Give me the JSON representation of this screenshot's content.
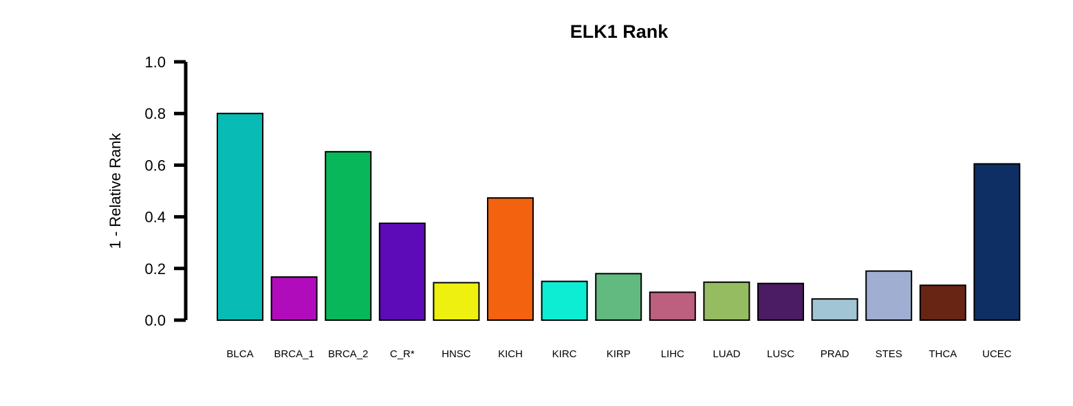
{
  "chart_data": {
    "type": "bar",
    "title": "ELK1 Rank",
    "xlabel": "",
    "ylabel": "1 - Relative Rank",
    "ylim": [
      0,
      1
    ],
    "yticks": [
      "0.0",
      "0.2",
      "0.4",
      "0.6",
      "0.8",
      "1.0"
    ],
    "ytick_values": [
      0,
      0.2,
      0.4,
      0.6,
      0.8,
      1.0
    ],
    "grid": false,
    "legend": "none",
    "categories": [
      "BLCA",
      "BRCA_1",
      "BRCA_2",
      "C_R*",
      "HNSC",
      "KICH",
      "KIRC",
      "KIRP",
      "LIHC",
      "LUAD",
      "LUSC",
      "PRAD",
      "STES",
      "THCA",
      "UCEC"
    ],
    "values": [
      0.8,
      0.167,
      0.652,
      0.375,
      0.145,
      0.473,
      0.15,
      0.18,
      0.108,
      0.147,
      0.142,
      0.082,
      0.19,
      0.135,
      0.605
    ],
    "colors": [
      "#09BBB5",
      "#B10CBB",
      "#08B75A",
      "#5D0AB8",
      "#EEF010",
      "#F2620F",
      "#0DEDD3",
      "#62BA80",
      "#BD5F7E",
      "#96BC62",
      "#4B1B63",
      "#A1C5D4",
      "#A0AED2",
      "#682513",
      "#0D2F64"
    ]
  }
}
